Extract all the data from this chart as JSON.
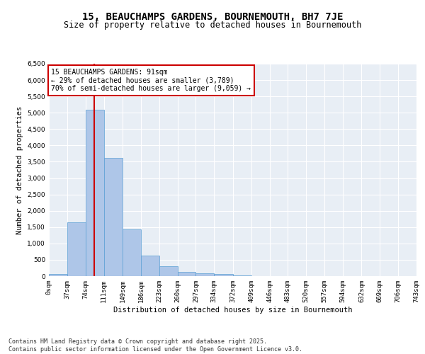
{
  "title": "15, BEAUCHAMPS GARDENS, BOURNEMOUTH, BH7 7JE",
  "subtitle": "Size of property relative to detached houses in Bournemouth",
  "xlabel": "Distribution of detached houses by size in Bournemouth",
  "ylabel": "Number of detached properties",
  "property_line_x": 91,
  "bin_edges": [
    0,
    37,
    74,
    111,
    149,
    186,
    223,
    260,
    297,
    334,
    372,
    409,
    446,
    483,
    520,
    557,
    594,
    632,
    669,
    706,
    743
  ],
  "bar_values": [
    75,
    1650,
    5100,
    3620,
    1420,
    620,
    310,
    135,
    80,
    55,
    30,
    10,
    5,
    5,
    3,
    2,
    1,
    1,
    1,
    1
  ],
  "bar_color": "#aec6e8",
  "bar_edge_color": "#5a9fd4",
  "vline_color": "#cc0000",
  "annotation_text": "15 BEAUCHAMPS GARDENS: 91sqm\n← 29% of detached houses are smaller (3,789)\n70% of semi-detached houses are larger (9,059) →",
  "annotation_box_color": "#ffffff",
  "annotation_box_edge": "#cc0000",
  "ylim": [
    0,
    6500
  ],
  "yticks": [
    0,
    500,
    1000,
    1500,
    2000,
    2500,
    3000,
    3500,
    4000,
    4500,
    5000,
    5500,
    6000,
    6500
  ],
  "xlim": [
    0,
    743
  ],
  "background_color": "#e8eef5",
  "grid_color": "#ffffff",
  "footer_text": "Contains HM Land Registry data © Crown copyright and database right 2025.\nContains public sector information licensed under the Open Government Licence v3.0.",
  "title_fontsize": 10,
  "subtitle_fontsize": 8.5,
  "axis_label_fontsize": 7.5,
  "tick_fontsize": 6.5,
  "annotation_fontsize": 7,
  "footer_fontsize": 6
}
